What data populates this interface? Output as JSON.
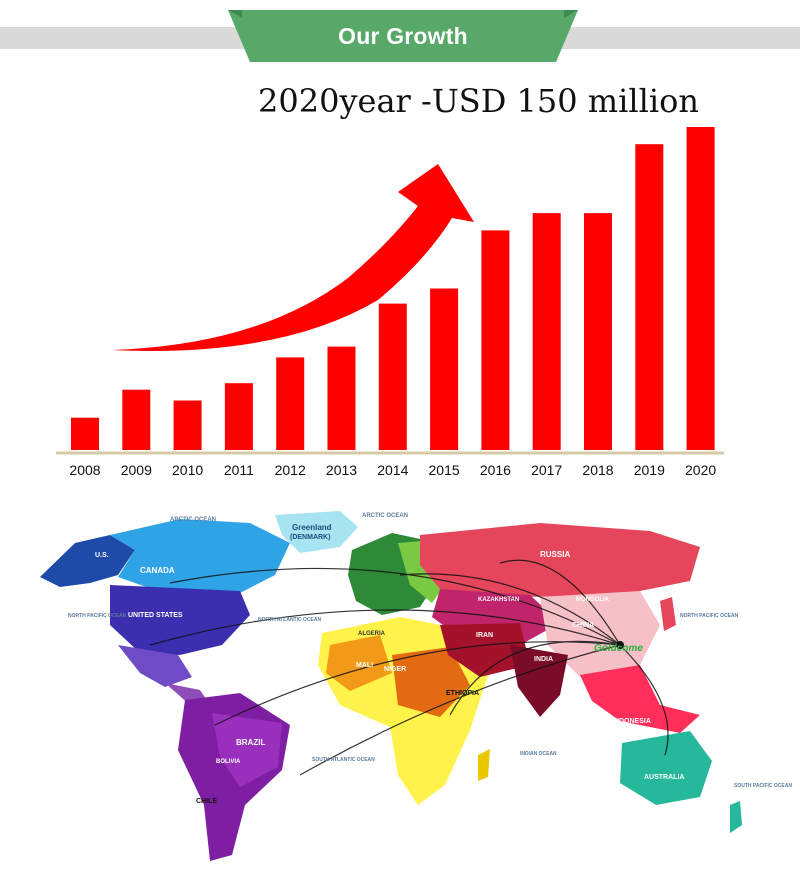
{
  "header": {
    "title": "Our Growth",
    "ribbon_color": "#58a86a",
    "band_color": "#d9d9d9"
  },
  "headline": "2020year -USD 150 million",
  "chart_data": {
    "type": "bar",
    "categories": [
      "2008",
      "2009",
      "2010",
      "2011",
      "2012",
      "2013",
      "2014",
      "2015",
      "2016",
      "2017",
      "2018",
      "2019",
      "2020"
    ],
    "values": [
      15,
      28,
      23,
      31,
      43,
      48,
      68,
      75,
      102,
      110,
      110,
      142,
      150
    ],
    "title": "2020year -USD 150 million",
    "xlabel": "",
    "ylabel": "",
    "ylim": [
      0,
      150
    ],
    "unit": "USD million",
    "bar_color": "#ff0000",
    "axis_color": "#d6c9a4",
    "grid": false,
    "trend_arrow_color": "#ff0000"
  },
  "map": {
    "labels": {
      "arctic_ocean_left": "ARCTIC OCEAN",
      "arctic_ocean_right": "ARCTIC OCEAN",
      "greenland": "Greenland",
      "denmark": "(DENMARK)",
      "us": "U.S.",
      "canada": "CANADA",
      "united_states": "UNITED STATES",
      "north_pacific_left": "NORTH PACIFIC OCEAN",
      "north_atlantic": "NORTH ATLANTIC OCEAN",
      "russia": "RUSSIA",
      "mongolia": "MONGOLIA",
      "kazakhstan": "KAZAKHSTAN",
      "china": "CHINA",
      "iran": "IRAN",
      "india": "INDIA",
      "brand": "Goldcome",
      "north_pacific_right": "NORTH PACIFIC OCEAN",
      "algeria": "ALGERIA",
      "mali": "MALI",
      "niger": "NIGER",
      "ethiopia": "ETHIOPIA",
      "brazil": "BRAZIL",
      "bolivia": "BOLIVIA",
      "chile": "CHILE",
      "south_atlantic": "SOUTH ATLANTIC OCEAN",
      "indian_ocean": "INDIAN OCEAN",
      "indonesia": "INDONESIA",
      "australia": "AUSTRALIA",
      "south_pacific": "SOUTH PACIFIC OCEAN"
    }
  }
}
